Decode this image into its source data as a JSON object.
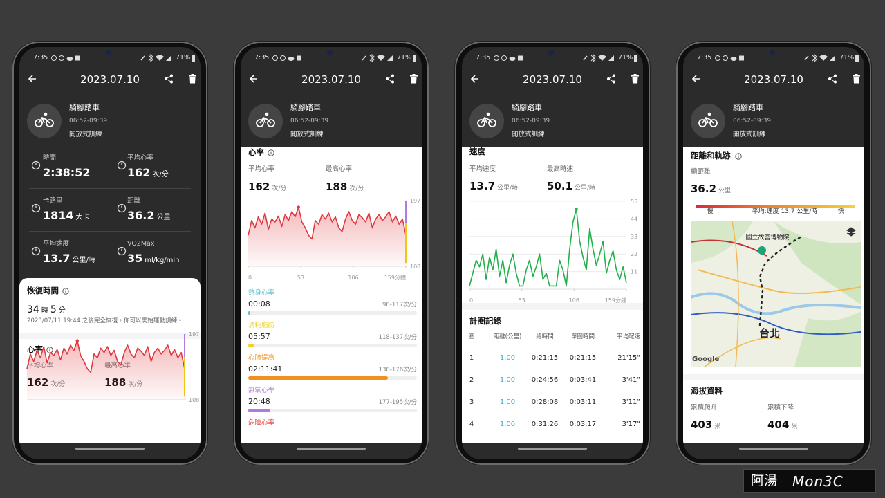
{
  "status_bar": {
    "time": "7:35",
    "battery": "71%"
  },
  "header": {
    "date": "2023.07.10"
  },
  "activity": {
    "name": "騎腳踏車",
    "time_range": "06:52-09:39",
    "mode": "開放式訓練"
  },
  "summary": {
    "stats": [
      {
        "label": "時間",
        "value": "2:38:52"
      },
      {
        "label": "平均心率",
        "value": "162",
        "unit": "次/分"
      },
      {
        "label": "卡路里",
        "value": "1814",
        "unit": "大卡"
      },
      {
        "label": "距離",
        "value": "36.2",
        "unit": "公里"
      },
      {
        "label": "平均速度",
        "value": "13.7",
        "unit": "公里/時"
      },
      {
        "label": "VO2Max",
        "value": "35",
        "unit": "ml/kg/min"
      }
    ],
    "recovery": {
      "title": "恢復時間",
      "hours": "34",
      "hours_unit": "時",
      "minutes": "5",
      "minutes_unit": "分",
      "note": "2023/07/11 19:44 之後完全恢復，你可以開始運動訓練。"
    }
  },
  "heart_rate": {
    "title": "心率",
    "average": {
      "label": "平均心率",
      "value": "162",
      "unit": "次/分"
    },
    "max": {
      "label": "最高心率",
      "value": "188",
      "unit": "次/分"
    },
    "chart": {
      "type": "line",
      "color": "#e0383e",
      "xlim": [
        0,
        159
      ],
      "ylim": [
        108,
        197
      ],
      "yticks": [
        108,
        197
      ],
      "xticks": [
        0,
        53,
        106,
        {
          "value": 159,
          "label": "159分鐘"
        }
      ],
      "values": [
        150,
        170,
        160,
        175,
        165,
        180,
        158,
        172,
        168,
        176,
        162,
        178,
        170,
        182,
        175,
        188,
        168,
        160,
        150,
        145,
        170,
        165,
        178,
        172,
        180,
        168,
        175,
        160,
        155,
        172,
        182,
        170,
        165,
        178,
        174,
        168,
        180,
        160,
        172,
        178,
        170,
        175,
        182,
        168,
        176,
        165,
        172,
        150
      ]
    },
    "zones": [
      {
        "name": "熱身心率",
        "time": "00:08",
        "range": "98-117次/分",
        "color": "#5bbfd3"
      },
      {
        "name": "消耗脂肪",
        "time": "05:57",
        "range": "118-137次/分",
        "color": "#f2d21b"
      },
      {
        "name": "心肺提高",
        "time": "02:11:41",
        "range": "138-176次/分",
        "color": "#f0901e"
      },
      {
        "name": "無氧心率",
        "time": "20:48",
        "range": "177-195次/分",
        "color": "#b07be0"
      },
      {
        "name": "危險心率",
        "color": "#e5393a"
      }
    ]
  },
  "speed": {
    "title": "速度",
    "average": {
      "label": "平均速度",
      "value": "13.7",
      "unit": "公里/時"
    },
    "max": {
      "label": "最高時速",
      "value": "50.1",
      "unit": "公里/時"
    },
    "chart": {
      "type": "line",
      "color": "#22b04b",
      "xlim": [
        0,
        159
      ],
      "ylim": [
        0,
        55
      ],
      "yticks": [
        11,
        22,
        33,
        44,
        55
      ],
      "xticks": [
        0,
        53,
        106,
        {
          "value": 159,
          "label": "159分鐘"
        }
      ],
      "values": [
        2,
        10,
        18,
        14,
        22,
        6,
        20,
        12,
        25,
        8,
        18,
        4,
        15,
        22,
        10,
        2,
        2,
        12,
        18,
        8,
        14,
        22,
        6,
        10,
        2,
        2,
        2,
        18,
        12,
        2,
        25,
        42,
        50.1,
        30,
        20,
        12,
        38,
        25,
        15,
        22,
        30,
        10,
        18,
        24,
        12,
        6,
        14,
        4
      ]
    }
  },
  "laps": {
    "title": "計圈記錄",
    "columns": [
      "圈",
      "距離(公里)",
      "總時間",
      "單圈時間",
      "平均配速"
    ],
    "rows": [
      [
        "1",
        "1.00",
        "0:21:15",
        "0:21:15",
        "21'15\""
      ],
      [
        "2",
        "1.00",
        "0:24:56",
        "0:03:41",
        "3'41\""
      ],
      [
        "3",
        "1.00",
        "0:28:08",
        "0:03:11",
        "3'11\""
      ],
      [
        "4",
        "1.00",
        "0:31:26",
        "0:03:17",
        "3'17\""
      ]
    ]
  },
  "track": {
    "title": "距離和軌跡",
    "total_label": "總距離",
    "total": "36.2",
    "unit": "公里",
    "legend": {
      "slow": "慢",
      "average": "平均:速度 13.7 公里/時",
      "fast": "快"
    },
    "map_labels": {
      "museum": "國立故宮博物院",
      "city": "台北",
      "attribution": "Google"
    }
  },
  "elevation": {
    "title": "海拔資料",
    "ascent": {
      "label": "累積爬升",
      "value": "403",
      "unit": "米"
    },
    "descent": {
      "label": "累積下降",
      "value": "404",
      "unit": "米"
    }
  },
  "watermark": {
    "name": "阿湯",
    "brand": "Mon3C"
  }
}
